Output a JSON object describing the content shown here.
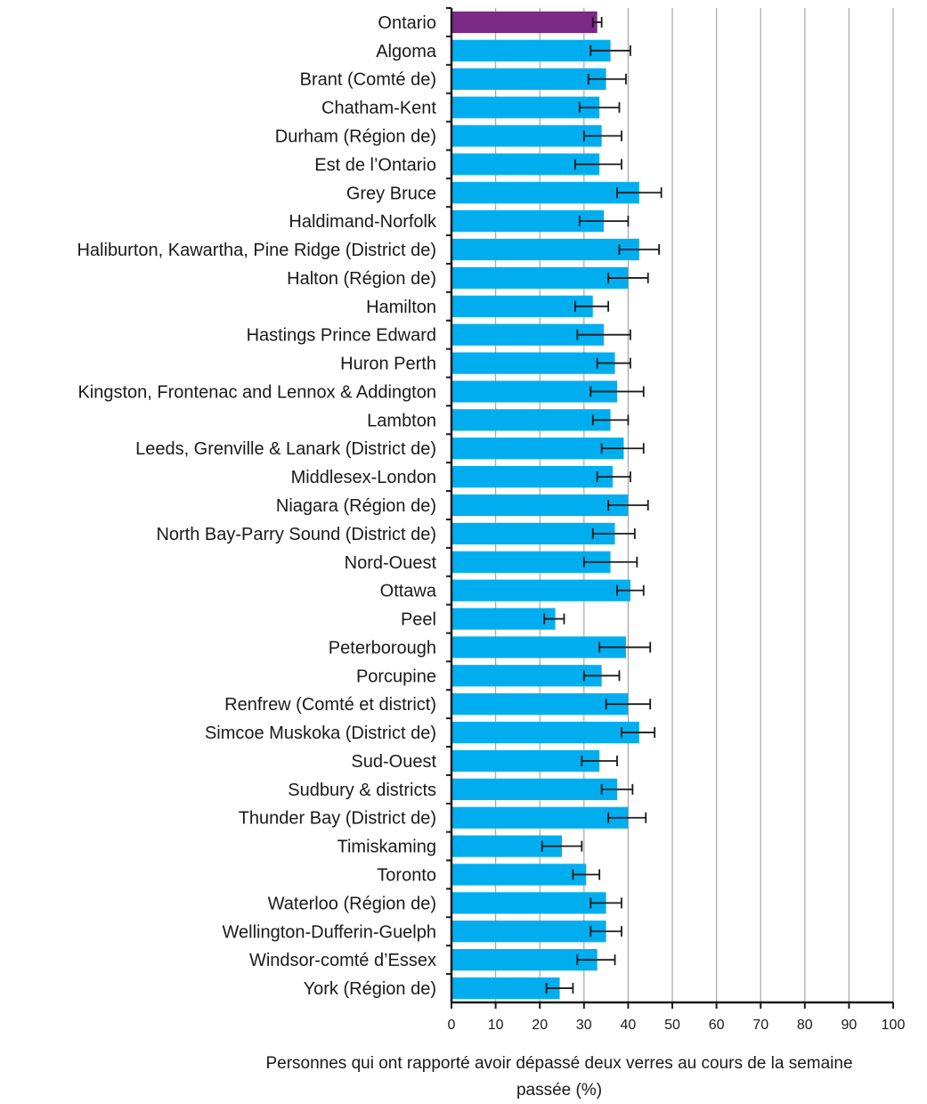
{
  "chart_data": {
    "type": "bar",
    "orientation": "horizontal",
    "title": "",
    "xlabel": "Personnes qui ont rapporté avoir dépassé deux verres au cours de la semaine passée (%)",
    "ylabel": "",
    "xlim": [
      0,
      100
    ],
    "xticks": [
      0,
      10,
      20,
      30,
      40,
      50,
      60,
      70,
      80,
      90,
      100
    ],
    "grid": "vertical",
    "legend": "none",
    "colors": {
      "highlight": "#7b2a86",
      "bar": "#00aeef",
      "error_bar": "#1a1a1a",
      "grid": "#a6a6a6",
      "axis": "#1a1a1a"
    },
    "highlight_category": "Ontario",
    "categories": [
      "Ontario",
      "Algoma",
      "Brant (Comté de)",
      "Chatham-Kent",
      "Durham (Région de)",
      "Est de l’Ontario",
      "Grey Bruce",
      "Haldimand-Norfolk",
      "Haliburton, Kawartha, Pine Ridge (District de)",
      "Halton (Région de)",
      "Hamilton",
      "Hastings Prince Edward",
      "Huron Perth",
      "Kingston, Frontenac and Lennox & Addington",
      "Lambton",
      "Leeds, Grenville & Lanark (District de)",
      "Middlesex-London",
      "Niagara (Région de)",
      "North Bay-Parry Sound (District de)",
      "Nord-Ouest",
      "Ottawa",
      "Peel",
      "Peterborough",
      "Porcupine",
      "Renfrew (Comté et district)",
      "Simcoe Muskoka (District de)",
      "Sud-Ouest",
      "Sudbury & districts",
      "Thunder Bay (District de)",
      "Timiskaming",
      "Toronto",
      "Waterloo (Région de)",
      "Wellington-Dufferin-Guelph",
      "Windsor-comté d’Essex",
      "York (Région de)"
    ],
    "series": [
      {
        "values": [
          33,
          36,
          35,
          33.5,
          34,
          33.5,
          42.5,
          34.5,
          42.5,
          40,
          32,
          34.5,
          37,
          37.5,
          36,
          39,
          36.5,
          40,
          37,
          36,
          40.5,
          23.5,
          39.5,
          34,
          40,
          42.5,
          33.5,
          37.5,
          40,
          25,
          30.5,
          35,
          35,
          33,
          24.5
        ],
        "error_low": [
          32,
          31.5,
          31,
          29,
          30,
          28,
          37.5,
          29,
          38,
          35.5,
          28,
          28.5,
          33,
          31.5,
          32,
          34,
          33,
          35.5,
          32,
          30,
          37.5,
          21,
          33.5,
          30,
          35,
          38.5,
          29.5,
          34,
          35.5,
          20.5,
          27.5,
          31.5,
          31.5,
          28.5,
          21.5
        ],
        "error_high": [
          34,
          40.5,
          39.5,
          38,
          38.5,
          38.5,
          47.5,
          40,
          47,
          44.5,
          35.5,
          40.5,
          40.5,
          43.5,
          40,
          43.5,
          40.5,
          44.5,
          41.5,
          42,
          43.5,
          25.5,
          45,
          38,
          45,
          46,
          37.5,
          41,
          44,
          29.5,
          33.5,
          38.5,
          38.5,
          37,
          27.5
        ]
      }
    ],
    "tick_labels_x": [
      "0",
      "10",
      "20",
      "30",
      "40",
      "50",
      "60",
      "70",
      "80",
      "90",
      "100"
    ]
  }
}
